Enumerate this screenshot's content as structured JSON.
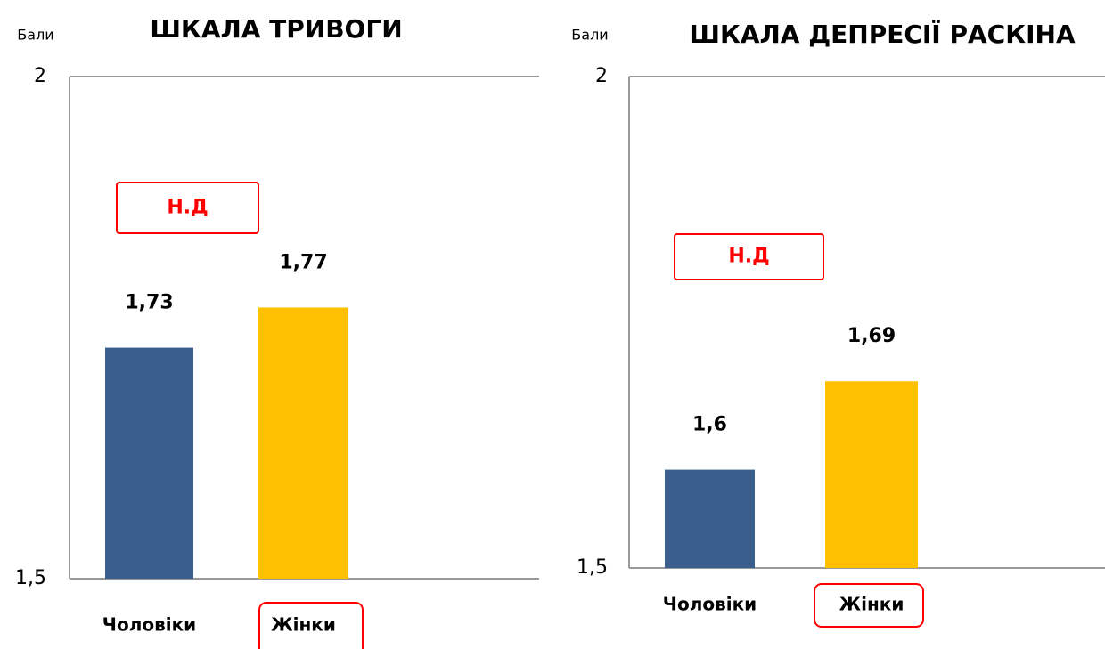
{
  "chart_data": [
    {
      "type": "bar",
      "title": "ШКАЛА ТРИВОГИ",
      "y_label": "Бали",
      "annotation": "Н.Д",
      "categories": [
        "Чоловіки",
        "Жінки"
      ],
      "values": [
        1.73,
        1.77
      ],
      "value_labels": [
        "1,73",
        "1,77"
      ],
      "colors": [
        "#3a5f8f",
        "#ffc000"
      ],
      "ylim": [
        1.5,
        2
      ],
      "yticks": [
        {
          "value": 1.5,
          "label": "1,5"
        },
        2
      ]
    },
    {
      "type": "bar",
      "title": "ШКАЛА  ДЕПРЕСІЇ РАСКІНА",
      "y_label": "Бали",
      "annotation": "Н.Д",
      "categories": [
        "Чоловіки",
        "Жінки"
      ],
      "values": [
        1.6,
        1.69
      ],
      "value_labels": [
        "1,6",
        "1,69"
      ],
      "colors": [
        "#3a5f8f",
        "#ffc000"
      ],
      "ylim": [
        1.5,
        2
      ],
      "yticks": [
        {
          "value": 1.5,
          "label": "1,5"
        },
        2
      ]
    }
  ]
}
